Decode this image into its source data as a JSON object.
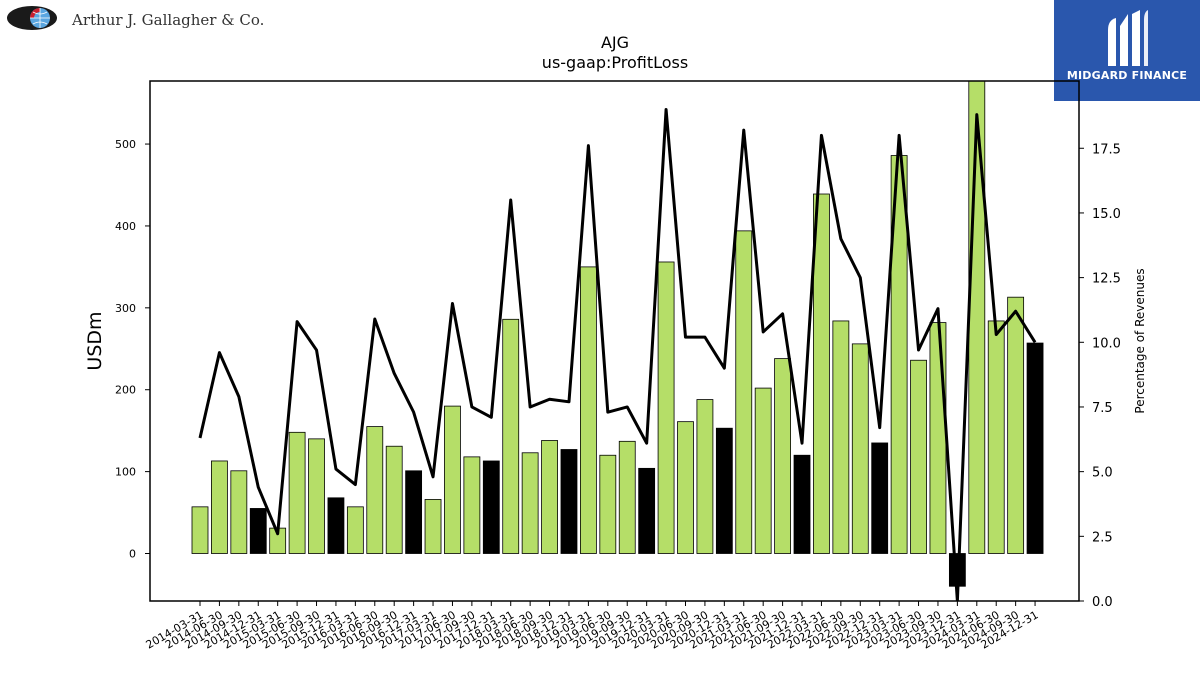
{
  "header": {
    "company_name": "Arthur J. Gallagher & Co.",
    "brand_name": "MIDGARD FINANCE"
  },
  "colors": {
    "bar_positive": "#b5de68",
    "bar_highlight": "#000000",
    "line": "#000000",
    "logo_red": "#c8202f",
    "logo_blue": "#5aa6e0",
    "brand_bg": "#2a57ad"
  },
  "chart_data": {
    "type": "bar",
    "title": "AJG",
    "subtitle": "us-gaap:ProfitLoss",
    "ylabel": "USDm",
    "y2label": "Percentage of Revenues",
    "ylim": [
      -58,
      577
    ],
    "y2lim": [
      0,
      20.1
    ],
    "yticks": [
      0,
      100,
      200,
      300,
      400,
      500
    ],
    "y2ticks": [
      0.0,
      2.5,
      5.0,
      7.5,
      10.0,
      12.5,
      15.0,
      17.5
    ],
    "categories": [
      "2014-03-31",
      "2014-06-30",
      "2014-09-30",
      "2014-12-31",
      "2015-03-31",
      "2015-06-30",
      "2015-09-30",
      "2015-12-31",
      "2016-03-31",
      "2016-06-30",
      "2016-09-30",
      "2016-12-31",
      "2017-03-31",
      "2017-06-30",
      "2017-09-30",
      "2017-12-31",
      "2018-03-31",
      "2018-06-30",
      "2018-09-30",
      "2018-12-31",
      "2019-03-31",
      "2019-06-30",
      "2019-09-30",
      "2019-12-31",
      "2020-03-31",
      "2020-06-30",
      "2020-09-30",
      "2020-12-31",
      "2021-03-31",
      "2021-06-30",
      "2021-09-30",
      "2021-12-31",
      "2022-03-31",
      "2022-06-30",
      "2022-09-30",
      "2022-12-31",
      "2023-03-31",
      "2023-06-30",
      "2023-09-30",
      "2023-12-31",
      "2024-03-31",
      "2024-06-30",
      "2024-09-30",
      "2024-12-31"
    ],
    "series": [
      {
        "type": "bar",
        "values": [
          57,
          113,
          101,
          55,
          31,
          148,
          140,
          68,
          57,
          155,
          131,
          101,
          66,
          180,
          118,
          113,
          286,
          123,
          138,
          127,
          350,
          120,
          137,
          104,
          356,
          161,
          188,
          153,
          394,
          202,
          238,
          120,
          439,
          284,
          256,
          135,
          486,
          236,
          282,
          -40,
          577,
          284,
          313,
          257
        ],
        "highlight": [
          false,
          false,
          false,
          true,
          false,
          false,
          false,
          true,
          false,
          false,
          false,
          true,
          false,
          false,
          false,
          true,
          false,
          false,
          false,
          true,
          false,
          false,
          false,
          true,
          false,
          false,
          false,
          true,
          false,
          false,
          false,
          true,
          false,
          false,
          false,
          true,
          false,
          false,
          false,
          true,
          false,
          false,
          false,
          true
        ]
      },
      {
        "type": "line",
        "axis": "right",
        "values": [
          6.3,
          9.6,
          7.9,
          4.4,
          2.6,
          10.8,
          9.7,
          5.1,
          4.5,
          10.9,
          8.8,
          7.3,
          4.8,
          11.5,
          7.5,
          7.1,
          15.5,
          7.5,
          7.8,
          7.7,
          17.6,
          7.3,
          7.5,
          6.1,
          19.0,
          10.2,
          10.2,
          9.0,
          18.2,
          10.4,
          11.1,
          6.1,
          18.0,
          14.0,
          12.5,
          6.7,
          18.0,
          9.7,
          11.3,
          0.0,
          18.8,
          10.3,
          11.2,
          10.0
        ]
      }
    ],
    "grid": false
  }
}
